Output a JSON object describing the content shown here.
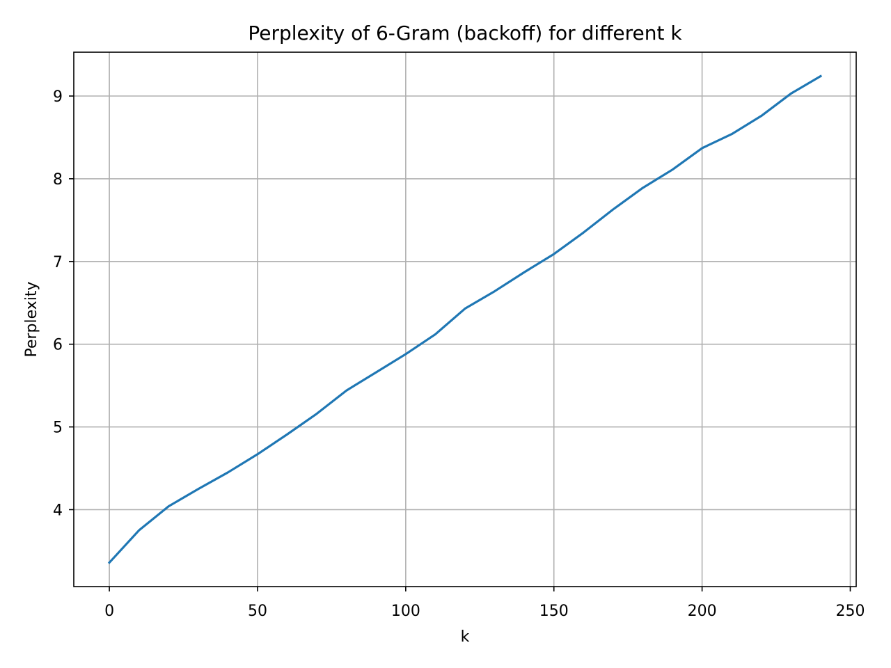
{
  "chart_data": {
    "type": "line",
    "title": "Perplexity of 6-Gram (backoff) for different k",
    "xlabel": "k",
    "ylabel": "Perplexity",
    "xlim": [
      -12,
      252
    ],
    "ylim": [
      3.07,
      9.53
    ],
    "xticks": [
      0,
      50,
      100,
      150,
      200,
      250
    ],
    "yticks": [
      4,
      5,
      6,
      7,
      8,
      9
    ],
    "grid": true,
    "legend": "none",
    "series": [
      {
        "color": "#1f77b4",
        "x": [
          0,
          10,
          20,
          30,
          40,
          50,
          60,
          70,
          80,
          90,
          100,
          110,
          120,
          130,
          140,
          150,
          160,
          170,
          180,
          190,
          200,
          210,
          220,
          230,
          240
        ],
        "y": [
          3.36,
          3.75,
          4.04,
          4.25,
          4.45,
          4.67,
          4.91,
          5.16,
          5.44,
          5.66,
          5.88,
          6.12,
          6.43,
          6.64,
          6.87,
          7.09,
          7.35,
          7.63,
          7.89,
          8.11,
          8.37,
          8.54,
          8.76,
          9.03,
          9.24
        ]
      }
    ]
  }
}
